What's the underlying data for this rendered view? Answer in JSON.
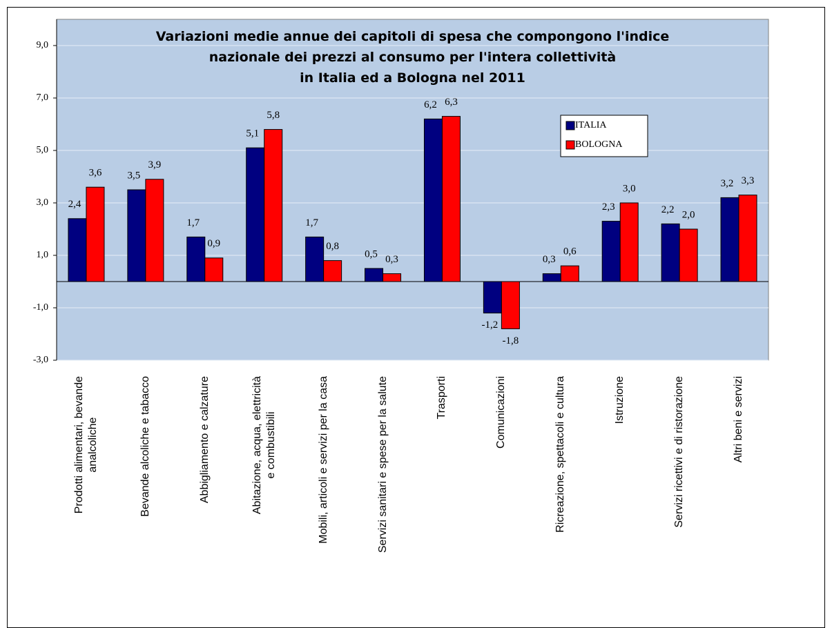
{
  "chart_data": {
    "type": "bar",
    "title": "Variazioni medie annue dei capitoli di spesa che compongono l'indice\nnazionale dei prezzi al consumo per l'intera collettività\nin Italia ed a Bologna nel 2011",
    "categories": [
      "Prodotti alimentari, bevande\nanalcoliche",
      "Bevande alcoliche e tabacco",
      "Abbigliamento e calzature",
      "Abitazione, acqua, elettricità\ne combustibili",
      "Mobili, articoli e servizi per la casa",
      "Servizi sanitari e spese per la salute",
      "Trasporti",
      "Comunicazioni",
      "Ricreazione, spettacoli e cultura",
      "Istruzione",
      "Servizi ricettivi e di ristorazione",
      "Altri beni e servizi"
    ],
    "series": [
      {
        "name": "ITALIA",
        "color": "#000080",
        "values": [
          2.4,
          3.5,
          1.7,
          5.1,
          1.7,
          0.5,
          6.2,
          -1.2,
          0.3,
          2.3,
          2.2,
          3.2
        ],
        "value_labels": [
          "2,4",
          "3,5",
          "1,7",
          "5,1",
          "1,7",
          "0,5",
          "6,2",
          "-1,2",
          "0,3",
          "2,3",
          "2,2",
          "3,2"
        ]
      },
      {
        "name": "BOLOGNA",
        "color": "#ff0000",
        "values": [
          3.6,
          3.9,
          0.9,
          5.8,
          0.8,
          0.3,
          6.3,
          -1.8,
          0.6,
          3.0,
          2.0,
          3.3
        ],
        "value_labels": [
          "3,6",
          "3,9",
          "0,9",
          "5,8",
          "0,8",
          "0,3",
          "6,3",
          "-1,8",
          "0,6",
          "3,0",
          "2,0",
          "3,3"
        ]
      }
    ],
    "ylim": [
      -3,
      10
    ],
    "yticks": [
      {
        "value": -3,
        "label": "-3,0"
      },
      {
        "value": -1,
        "label": "-1,0"
      },
      {
        "value": 1,
        "label": "1,0"
      },
      {
        "value": 3,
        "label": "3,0"
      },
      {
        "value": 5,
        "label": "5,0"
      },
      {
        "value": 7,
        "label": "7,0"
      },
      {
        "value": 9,
        "label": "9,0"
      }
    ],
    "grid": true,
    "legend": "upper right"
  }
}
